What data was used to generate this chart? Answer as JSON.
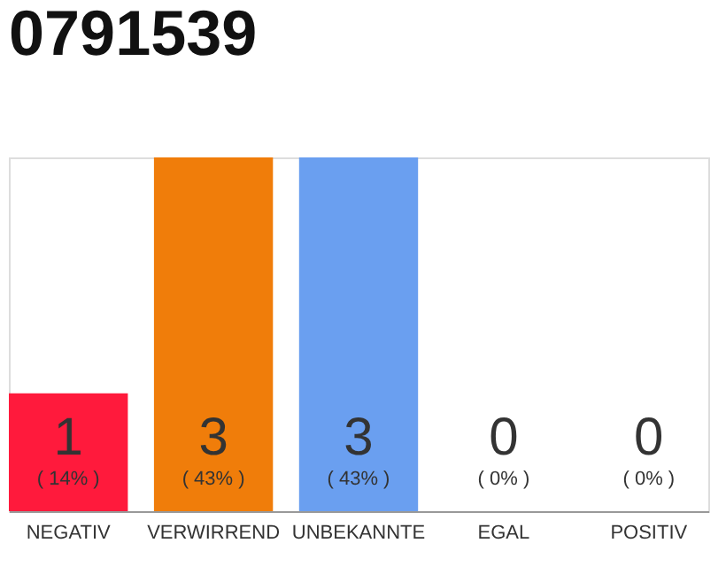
{
  "chart_data": {
    "type": "bar",
    "title": "0791539",
    "categories": [
      "NEGATIV",
      "VERWIRREND",
      "UNBEKANNTE",
      "EGAL",
      "POSITIV"
    ],
    "values": [
      1,
      3,
      3,
      0,
      0
    ],
    "colors": [
      "#ff1a3c",
      "#f07d0a",
      "#6a9ff0",
      "#efefef",
      "#efefef"
    ],
    "data_labels": true,
    "ylim": [
      0,
      3
    ],
    "annotations": [
      "( 14% )",
      "( 43% )",
      "( 43% )",
      "( 0% )",
      "( 0% )"
    ]
  }
}
